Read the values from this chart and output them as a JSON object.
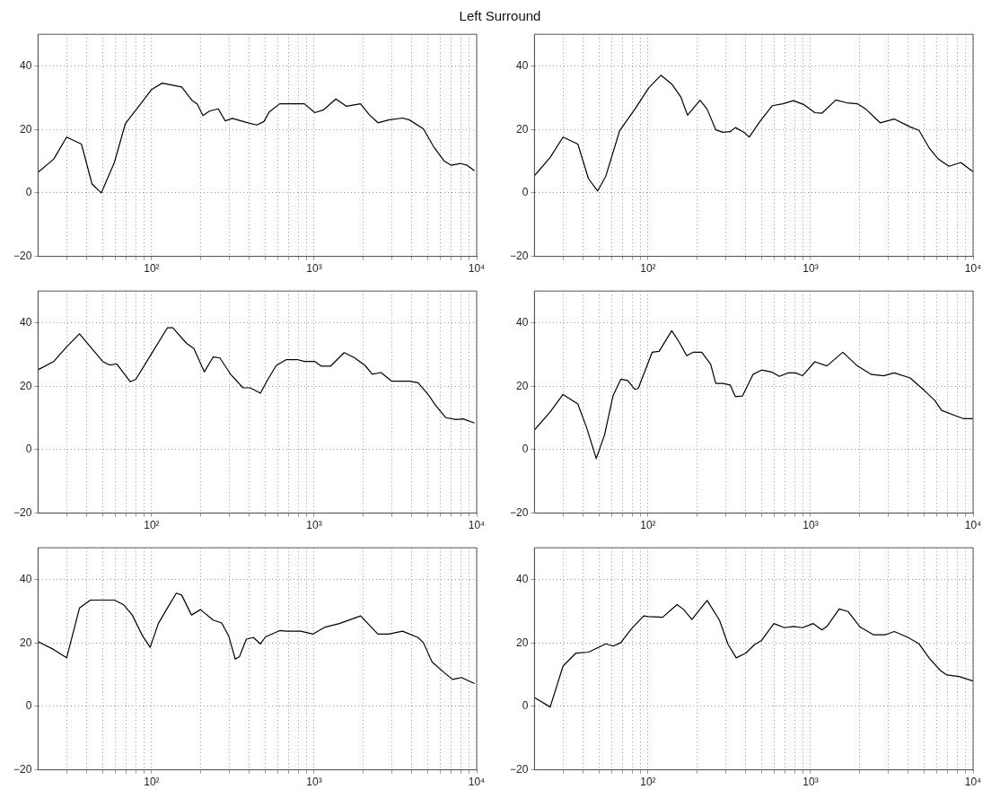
{
  "chart_data": [
    {
      "type": "line",
      "title": "Left Surround",
      "color": "#000000",
      "marker": "none",
      "line_style": "solid",
      "log": "x",
      "grid": true,
      "xlim": [
        20,
        10000
      ],
      "ylim": [
        -20,
        50
      ],
      "yticks": [
        -20,
        0,
        20,
        40
      ],
      "xticks": [
        {
          "value": 30,
          "label": null
        },
        {
          "value": 40,
          "label": null
        },
        {
          "value": 50,
          "label": null
        },
        {
          "value": 60,
          "label": null
        },
        {
          "value": 70,
          "label": null
        },
        {
          "value": 80,
          "label": null
        },
        {
          "value": 90,
          "label": null
        },
        {
          "value": 100,
          "label": "10²"
        },
        {
          "value": 200,
          "label": null
        },
        {
          "value": 300,
          "label": null
        },
        {
          "value": 400,
          "label": null
        },
        {
          "value": 500,
          "label": null
        },
        {
          "value": 600,
          "label": null
        },
        {
          "value": 700,
          "label": null
        },
        {
          "value": 800,
          "label": null
        },
        {
          "value": 900,
          "label": null
        },
        {
          "value": 1000,
          "label": "10³"
        },
        {
          "value": 2000,
          "label": null
        },
        {
          "value": 3000,
          "label": null
        },
        {
          "value": 4000,
          "label": null
        },
        {
          "value": 5000,
          "label": null
        },
        {
          "value": 6000,
          "label": null
        },
        {
          "value": 7000,
          "label": null
        },
        {
          "value": 8000,
          "label": null
        },
        {
          "value": 9000,
          "label": null
        },
        {
          "value": 10000,
          "label": "10⁴"
        }
      ],
      "x": [
        20,
        25,
        30,
        37,
        43,
        49,
        59,
        69,
        84,
        100,
        116,
        153,
        177,
        191,
        207,
        227,
        257,
        284,
        314,
        392,
        444,
        491,
        529,
        614,
        750,
        871,
        1010,
        1144,
        1362,
        1580,
        1930,
        2180,
        2470,
        2870,
        3500,
        3860,
        4700,
        5430,
        6300,
        6990,
        7930,
        8760,
        9700
      ],
      "values": [
        6.5,
        10.7,
        17.6,
        15.4,
        2.8,
        0,
        9.6,
        21.9,
        27.5,
        32.6,
        34.6,
        33.4,
        29.2,
        28,
        24.4,
        25.8,
        26.5,
        22.7,
        23.5,
        22.1,
        21.4,
        22.5,
        25.5,
        28.1,
        28.1,
        28.1,
        25.3,
        26.2,
        29.6,
        27.3,
        28.1,
        24.7,
        22.1,
        23,
        23.6,
        23,
        20.2,
        14.6,
        10.1,
        8.7,
        9.3,
        8.7,
        7
      ]
    },
    {
      "type": "line",
      "color": "#000000",
      "marker": "none",
      "line_style": "solid",
      "log": "x",
      "grid": true,
      "xlim": [
        20,
        10000
      ],
      "ylim": [
        -20,
        50
      ],
      "yticks": [
        -20,
        0,
        20,
        40
      ],
      "xticks": [
        {
          "value": 30,
          "label": null
        },
        {
          "value": 40,
          "label": null
        },
        {
          "value": 50,
          "label": null
        },
        {
          "value": 60,
          "label": null
        },
        {
          "value": 70,
          "label": null
        },
        {
          "value": 80,
          "label": null
        },
        {
          "value": 90,
          "label": null
        },
        {
          "value": 100,
          "label": "10²"
        },
        {
          "value": 200,
          "label": null
        },
        {
          "value": 300,
          "label": null
        },
        {
          "value": 400,
          "label": null
        },
        {
          "value": 500,
          "label": null
        },
        {
          "value": 600,
          "label": null
        },
        {
          "value": 700,
          "label": null
        },
        {
          "value": 800,
          "label": null
        },
        {
          "value": 900,
          "label": null
        },
        {
          "value": 1000,
          "label": "10³"
        },
        {
          "value": 2000,
          "label": null
        },
        {
          "value": 3000,
          "label": null
        },
        {
          "value": 4000,
          "label": null
        },
        {
          "value": 5000,
          "label": null
        },
        {
          "value": 6000,
          "label": null
        },
        {
          "value": 7000,
          "label": null
        },
        {
          "value": 8000,
          "label": null
        },
        {
          "value": 9000,
          "label": null
        },
        {
          "value": 10000,
          "label": "10⁴"
        }
      ],
      "x": [
        20,
        25,
        30,
        37,
        43,
        49,
        55,
        67,
        83,
        101,
        120,
        140,
        159,
        175,
        209,
        231,
        261,
        289,
        320,
        345,
        390,
        420,
        488,
        582,
        675,
        785,
        913,
        1062,
        1174,
        1430,
        1670,
        1940,
        2190,
        2680,
        3270,
        4100,
        4650,
        5400,
        6100,
        7100,
        8400,
        10000
      ],
      "values": [
        5.4,
        11.2,
        17.6,
        15.4,
        4.5,
        0.6,
        5.3,
        19.7,
        26.4,
        33.1,
        37.1,
        34.3,
        30.3,
        24.5,
        29.2,
        26.4,
        19.9,
        19.1,
        19.3,
        20.6,
        19.1,
        17.6,
        22.5,
        27.5,
        28.1,
        29.1,
        27.8,
        25.3,
        25.1,
        29.3,
        28.4,
        28.1,
        26.4,
        22.1,
        23.3,
        20.8,
        19.7,
        14,
        10.7,
        8.4,
        9.6,
        6.7
      ]
    },
    {
      "type": "line",
      "color": "#000000",
      "marker": "none",
      "line_style": "solid",
      "log": "x",
      "grid": true,
      "xlim": [
        20,
        10000
      ],
      "ylim": [
        -20,
        50
      ],
      "yticks": [
        -20,
        0,
        20,
        40
      ],
      "xticks": [
        {
          "value": 30,
          "label": null
        },
        {
          "value": 40,
          "label": null
        },
        {
          "value": 50,
          "label": null
        },
        {
          "value": 60,
          "label": null
        },
        {
          "value": 70,
          "label": null
        },
        {
          "value": 80,
          "label": null
        },
        {
          "value": 90,
          "label": null
        },
        {
          "value": 100,
          "label": "10²"
        },
        {
          "value": 200,
          "label": null
        },
        {
          "value": 300,
          "label": null
        },
        {
          "value": 400,
          "label": null
        },
        {
          "value": 500,
          "label": null
        },
        {
          "value": 600,
          "label": null
        },
        {
          "value": 700,
          "label": null
        },
        {
          "value": 800,
          "label": null
        },
        {
          "value": 900,
          "label": null
        },
        {
          "value": 1000,
          "label": "10³"
        },
        {
          "value": 2000,
          "label": null
        },
        {
          "value": 3000,
          "label": null
        },
        {
          "value": 4000,
          "label": null
        },
        {
          "value": 5000,
          "label": null
        },
        {
          "value": 6000,
          "label": null
        },
        {
          "value": 7000,
          "label": null
        },
        {
          "value": 8000,
          "label": null
        },
        {
          "value": 9000,
          "label": null
        },
        {
          "value": 10000,
          "label": "10⁴"
        }
      ],
      "x": [
        20,
        25,
        30,
        36,
        42,
        50,
        55,
        61,
        67,
        74,
        80,
        100,
        125,
        135,
        164,
        182,
        211,
        239,
        263,
        306,
        365,
        404,
        467,
        516,
        584,
        675,
        786,
        870,
        1010,
        1110,
        1260,
        1530,
        1780,
        2060,
        2280,
        2580,
        2990,
        3860,
        4360,
        5050,
        5560,
        6450,
        7460,
        8250,
        9700
      ],
      "values": [
        25.2,
        27.8,
        32.4,
        36.5,
        32.4,
        27.8,
        26.7,
        27,
        24.3,
        21.4,
        22.2,
        30.3,
        38.4,
        38.4,
        33.5,
        31.9,
        24.5,
        29.2,
        28.9,
        23.8,
        19.5,
        19.5,
        17.8,
        21.9,
        26.5,
        28.4,
        28.4,
        27.8,
        27.8,
        26.3,
        26.3,
        30.6,
        28.9,
        26.5,
        23.8,
        24.3,
        21.6,
        21.6,
        21.1,
        17.3,
        14.1,
        10.1,
        9.5,
        9.7,
        8.4
      ]
    },
    {
      "type": "line",
      "color": "#000000",
      "marker": "none",
      "line_style": "solid",
      "log": "x",
      "grid": true,
      "xlim": [
        20,
        10000
      ],
      "ylim": [
        -20,
        50
      ],
      "yticks": [
        -20,
        0,
        20,
        40
      ],
      "xticks": [
        {
          "value": 30,
          "label": null
        },
        {
          "value": 40,
          "label": null
        },
        {
          "value": 50,
          "label": null
        },
        {
          "value": 60,
          "label": null
        },
        {
          "value": 70,
          "label": null
        },
        {
          "value": 80,
          "label": null
        },
        {
          "value": 90,
          "label": null
        },
        {
          "value": 100,
          "label": "10²"
        },
        {
          "value": 200,
          "label": null
        },
        {
          "value": 300,
          "label": null
        },
        {
          "value": 400,
          "label": null
        },
        {
          "value": 500,
          "label": null
        },
        {
          "value": 600,
          "label": null
        },
        {
          "value": 700,
          "label": null
        },
        {
          "value": 800,
          "label": null
        },
        {
          "value": 900,
          "label": null
        },
        {
          "value": 1000,
          "label": "10³"
        },
        {
          "value": 2000,
          "label": null
        },
        {
          "value": 3000,
          "label": null
        },
        {
          "value": 4000,
          "label": null
        },
        {
          "value": 5000,
          "label": null
        },
        {
          "value": 6000,
          "label": null
        },
        {
          "value": 7000,
          "label": null
        },
        {
          "value": 8000,
          "label": null
        },
        {
          "value": 9000,
          "label": null
        },
        {
          "value": 10000,
          "label": "10⁴"
        }
      ],
      "x": [
        20,
        25,
        30,
        37,
        42,
        48,
        54,
        61,
        68,
        75,
        83,
        87,
        106,
        117,
        140,
        155,
        173,
        189,
        214,
        243,
        261,
        289,
        320,
        345,
        381,
        442,
        500,
        582,
        642,
        729,
        807,
        892,
        1062,
        1262,
        1580,
        1940,
        2370,
        2820,
        3270,
        4100,
        5000,
        5820,
        6400,
        7900,
        8700,
        10000
      ],
      "values": [
        6.2,
        11.9,
        17.4,
        14.4,
        6.8,
        -2.8,
        4.6,
        17.1,
        22.2,
        21.8,
        19,
        19.3,
        30.7,
        31,
        37.5,
        34,
        29.6,
        30.7,
        30.7,
        26.9,
        20.9,
        20.9,
        20.4,
        16.7,
        16.9,
        23.7,
        25.1,
        24.4,
        23.1,
        24.2,
        24.2,
        23.3,
        27.7,
        26.4,
        30.7,
        26.4,
        23.7,
        23.3,
        24.2,
        22.6,
        18.7,
        15.5,
        12.4,
        10.6,
        9.8,
        9.8
      ]
    },
    {
      "type": "line",
      "color": "#000000",
      "marker": "none",
      "line_style": "solid",
      "log": "x",
      "grid": true,
      "xlim": [
        20,
        10000
      ],
      "ylim": [
        -20,
        50
      ],
      "yticks": [
        -20,
        0,
        20,
        40
      ],
      "xticks": [
        {
          "value": 30,
          "label": null
        },
        {
          "value": 40,
          "label": null
        },
        {
          "value": 50,
          "label": null
        },
        {
          "value": 60,
          "label": null
        },
        {
          "value": 70,
          "label": null
        },
        {
          "value": 80,
          "label": null
        },
        {
          "value": 90,
          "label": null
        },
        {
          "value": 100,
          "label": "10²"
        },
        {
          "value": 200,
          "label": null
        },
        {
          "value": 300,
          "label": null
        },
        {
          "value": 400,
          "label": null
        },
        {
          "value": 500,
          "label": null
        },
        {
          "value": 600,
          "label": null
        },
        {
          "value": 700,
          "label": null
        },
        {
          "value": 800,
          "label": null
        },
        {
          "value": 900,
          "label": null
        },
        {
          "value": 1000,
          "label": "10³"
        },
        {
          "value": 2000,
          "label": null
        },
        {
          "value": 3000,
          "label": null
        },
        {
          "value": 4000,
          "label": null
        },
        {
          "value": 5000,
          "label": null
        },
        {
          "value": 6000,
          "label": null
        },
        {
          "value": 7000,
          "label": null
        },
        {
          "value": 8000,
          "label": null
        },
        {
          "value": 9000,
          "label": null
        },
        {
          "value": 10000,
          "label": "10⁴"
        }
      ],
      "x": [
        20,
        25,
        30,
        36,
        42,
        59,
        67,
        76,
        88,
        98,
        110,
        125,
        142,
        153,
        176,
        200,
        239,
        270,
        298,
        327,
        347,
        383,
        423,
        467,
        502,
        614,
        675,
        826,
        985,
        1170,
        1430,
        1930,
        2470,
        2870,
        3500,
        4360,
        4700,
        5320,
        6300,
        7100,
        8060,
        9700
      ],
      "values": [
        20.4,
        17.9,
        15.3,
        31,
        33.5,
        33.5,
        32.1,
        28.8,
        22.2,
        18.6,
        26.1,
        31,
        35.7,
        35.1,
        28.8,
        30.5,
        27.2,
        26.3,
        22.2,
        14.9,
        15.7,
        21.2,
        21.7,
        19.7,
        21.9,
        23.9,
        23.7,
        23.7,
        22.8,
        25,
        26.1,
        28.5,
        22.8,
        22.8,
        23.7,
        21.7,
        20.1,
        14,
        10.7,
        8.5,
        9.1,
        7.2
      ]
    },
    {
      "type": "line",
      "color": "#000000",
      "marker": "none",
      "line_style": "solid",
      "log": "x",
      "grid": true,
      "xlim": [
        20,
        10000
      ],
      "ylim": [
        -20,
        50
      ],
      "yticks": [
        -20,
        0,
        20,
        40
      ],
      "xticks": [
        {
          "value": 30,
          "label": null
        },
        {
          "value": 40,
          "label": null
        },
        {
          "value": 50,
          "label": null
        },
        {
          "value": 60,
          "label": null
        },
        {
          "value": 70,
          "label": null
        },
        {
          "value": 80,
          "label": null
        },
        {
          "value": 90,
          "label": null
        },
        {
          "value": 100,
          "label": "10²"
        },
        {
          "value": 200,
          "label": null
        },
        {
          "value": 300,
          "label": null
        },
        {
          "value": 400,
          "label": null
        },
        {
          "value": 500,
          "label": null
        },
        {
          "value": 600,
          "label": null
        },
        {
          "value": 700,
          "label": null
        },
        {
          "value": 800,
          "label": null
        },
        {
          "value": 900,
          "label": null
        },
        {
          "value": 1000,
          "label": "10³"
        },
        {
          "value": 2000,
          "label": null
        },
        {
          "value": 3000,
          "label": null
        },
        {
          "value": 4000,
          "label": null
        },
        {
          "value": 5000,
          "label": null
        },
        {
          "value": 6000,
          "label": null
        },
        {
          "value": 7000,
          "label": null
        },
        {
          "value": 8000,
          "label": null
        },
        {
          "value": 9000,
          "label": null
        },
        {
          "value": 10000,
          "label": "10⁴"
        }
      ],
      "x": [
        20,
        25,
        30,
        36,
        43,
        55,
        61,
        68,
        79,
        94,
        101,
        123,
        151,
        166,
        186,
        231,
        275,
        311,
        349,
        400,
        453,
        500,
        595,
        690,
        785,
        890,
        1040,
        1174,
        1262,
        1500,
        1700,
        2020,
        2430,
        2900,
        3270,
        4000,
        4650,
        5400,
        6300,
        6900,
        8200,
        10000
      ],
      "values": [
        2.8,
        -0.2,
        12.7,
        16.8,
        17.1,
        19.7,
        19,
        20.1,
        24.4,
        28.5,
        28.3,
        28.1,
        32.1,
        30.5,
        27.4,
        33.4,
        27.2,
        19.5,
        15.3,
        16.8,
        19.5,
        20.8,
        26.1,
        24.8,
        25.2,
        24.8,
        26.1,
        24.1,
        25.2,
        30.7,
        29.9,
        25,
        22.6,
        22.6,
        23.6,
        21.7,
        19.7,
        15.1,
        11.3,
        9.9,
        9.4,
        8
      ]
    }
  ]
}
